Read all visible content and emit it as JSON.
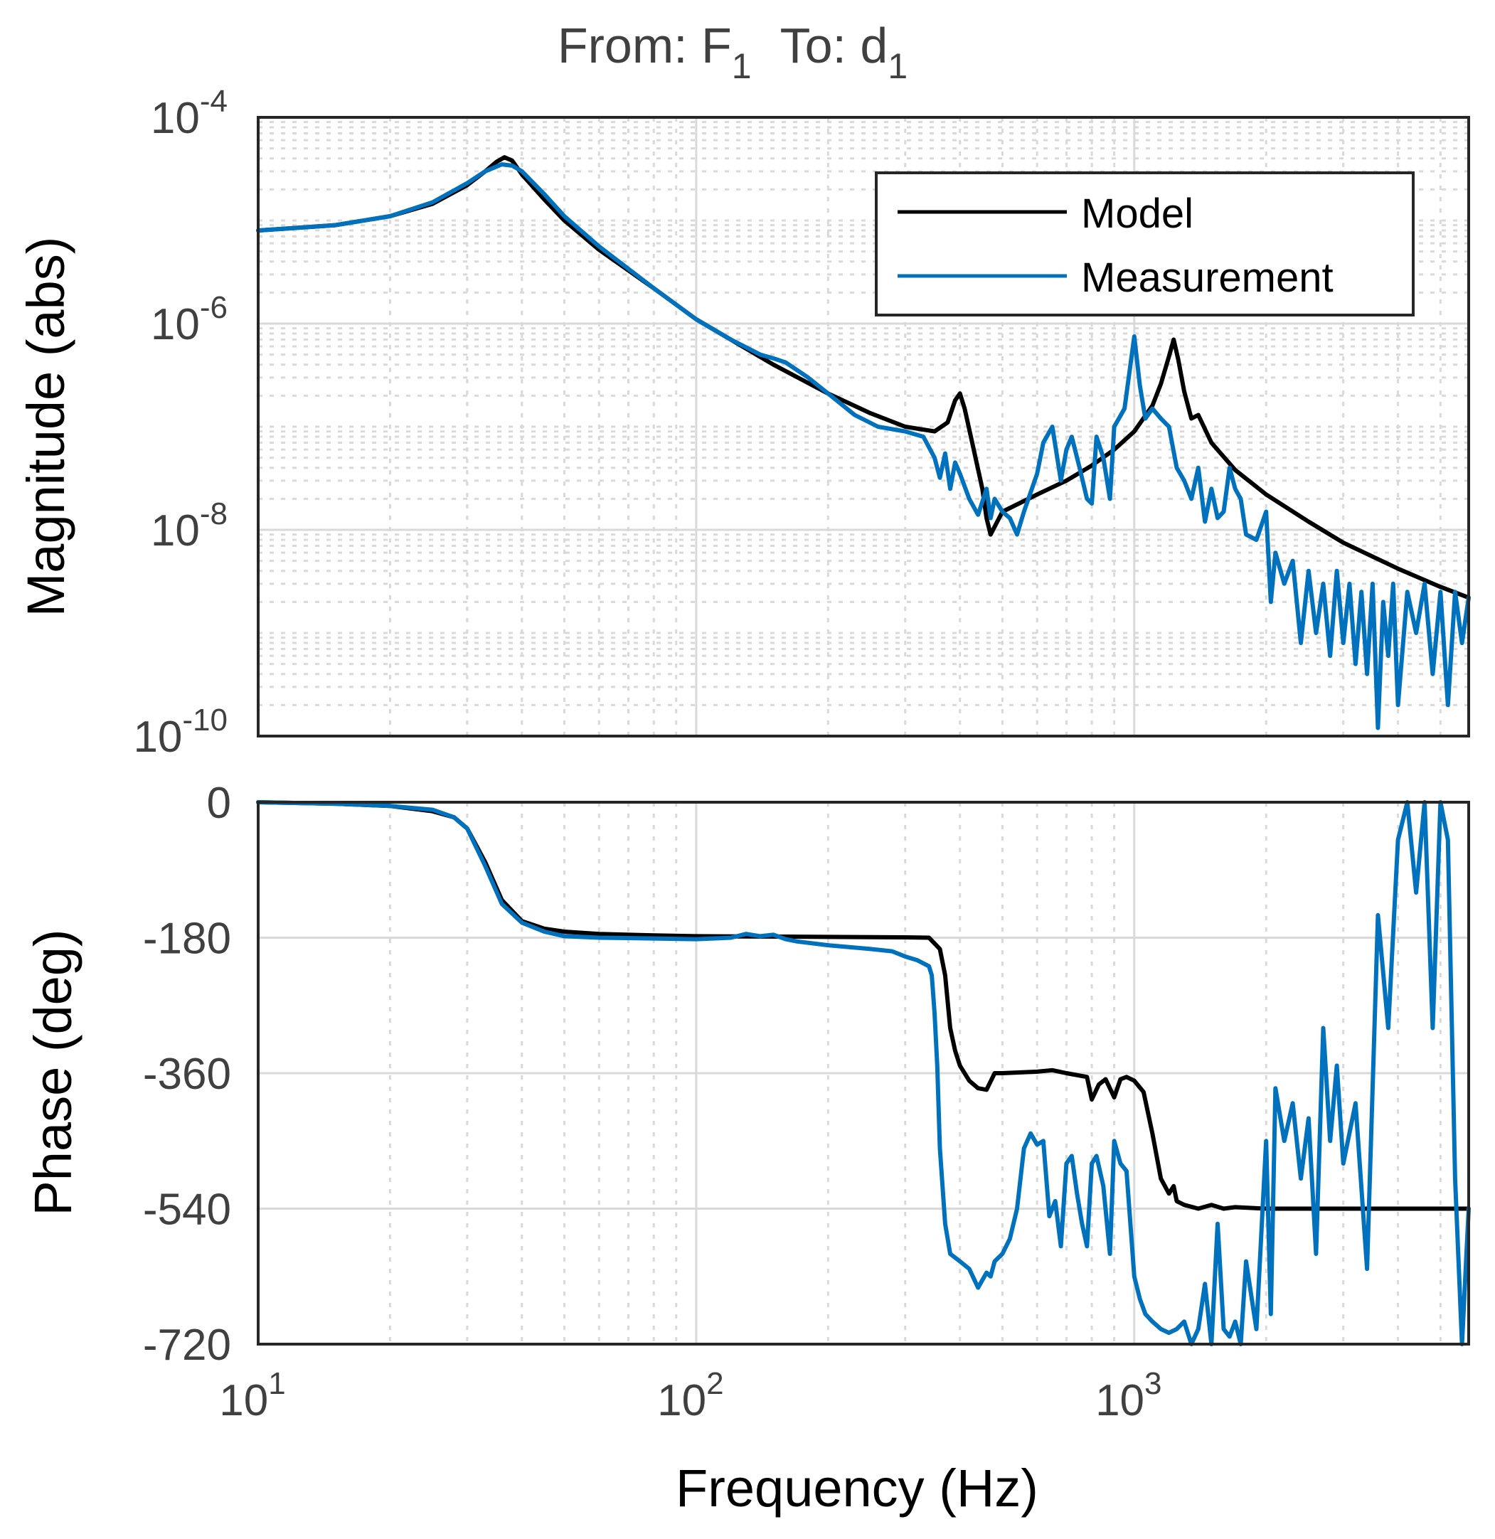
{
  "title": {
    "prefix_from": "From: F",
    "from_sub": "1",
    "prefix_to": "To: d",
    "to_sub": "1"
  },
  "colors": {
    "model": "#000000",
    "measurement": "#0072BD",
    "grid": "#d9d9d9",
    "text": "#404040"
  },
  "chart_data": [
    {
      "type": "line",
      "name": "magnitude",
      "title": "From: F1 To: d1",
      "xlabel": "Frequency (Hz)",
      "ylabel": "Magnitude (abs)",
      "xscale": "log",
      "yscale": "log",
      "xlim": [
        10,
        5800
      ],
      "ylim": [
        1e-10,
        0.0001
      ],
      "yticks": [
        {
          "base": "10",
          "exp": "-4"
        },
        {
          "base": "10",
          "exp": "-6"
        },
        {
          "base": "10",
          "exp": "-8"
        },
        {
          "base": "10",
          "exp": "-10"
        }
      ],
      "legend": {
        "position": "top-right",
        "entries": [
          "Model",
          "Measurement"
        ]
      },
      "series": [
        {
          "name": "Model",
          "x": [
            10,
            15,
            20,
            25,
            30,
            33,
            35,
            36.5,
            38,
            40,
            45,
            50,
            60,
            80,
            100,
            150,
            200,
            250,
            300,
            350,
            375,
            390,
            400,
            410,
            430,
            450,
            460,
            470,
            500,
            600,
            700,
            800,
            900,
            1000,
            1100,
            1150,
            1200,
            1230,
            1260,
            1300,
            1350,
            1400,
            1500,
            1700,
            2000,
            2500,
            3000,
            4000,
            5000,
            5800
          ],
          "y": [
            8e-06,
            9e-06,
            1.1e-05,
            1.45e-05,
            2.2e-05,
            3e-05,
            3.7e-05,
            4.1e-05,
            3.8e-05,
            2.8e-05,
            1.6e-05,
            1e-05,
            5.2e-06,
            2.2e-06,
            1.1e-06,
            4e-07,
            2.1e-07,
            1.35e-07,
            1e-07,
            9e-08,
            1.1e-07,
            1.8e-07,
            2.1e-07,
            1.5e-07,
            6e-08,
            2.5e-08,
            1.3e-08,
            9e-09,
            1.5e-08,
            2.2e-08,
            3e-08,
            4.2e-08,
            6e-08,
            9e-08,
            1.6e-07,
            2.6e-07,
            4.8e-07,
            7e-07,
            4.5e-07,
            2.2e-07,
            1.2e-07,
            1.3e-07,
            7e-08,
            3.8e-08,
            2.2e-08,
            1.2e-08,
            7.5e-09,
            4.2e-09,
            2.8e-09,
            2.2e-09
          ]
        },
        {
          "name": "Measurement",
          "x": [
            10,
            15,
            20,
            25,
            30,
            33,
            36,
            38,
            40,
            45,
            50,
            60,
            80,
            100,
            120,
            140,
            150,
            160,
            180,
            200,
            230,
            260,
            300,
            330,
            350,
            360,
            370,
            380,
            390,
            400,
            420,
            440,
            460,
            470,
            480,
            500,
            520,
            540,
            560,
            600,
            620,
            650,
            680,
            700,
            720,
            750,
            780,
            800,
            820,
            850,
            880,
            900,
            950,
            1000,
            1030,
            1060,
            1100,
            1150,
            1200,
            1250,
            1300,
            1350,
            1400,
            1450,
            1500,
            1550,
            1600,
            1650,
            1700,
            1750,
            1800,
            1900,
            2000,
            2050,
            2100,
            2200,
            2300,
            2400,
            2500,
            2600,
            2700,
            2800,
            2900,
            3000,
            3100,
            3200,
            3300,
            3400,
            3500,
            3600,
            3700,
            3800,
            3900,
            4000,
            4200,
            4400,
            4600,
            4800,
            5000,
            5200,
            5400,
            5600,
            5800
          ],
          "y": [
            8e-06,
            9e-06,
            1.1e-05,
            1.5e-05,
            2.3e-05,
            3e-05,
            3.5e-05,
            3.4e-05,
            3e-05,
            1.8e-05,
            1.1e-05,
            5.6e-06,
            2.2e-06,
            1.1e-06,
            7e-07,
            5e-07,
            4.6e-07,
            4.2e-07,
            3e-07,
            2.1e-07,
            1.3e-07,
            1e-07,
            9e-08,
            8e-08,
            5e-08,
            3.2e-08,
            5.5e-08,
            2.5e-08,
            4.5e-08,
            3.5e-08,
            2e-08,
            1.4e-08,
            2.5e-08,
            1.3e-08,
            2e-08,
            1.5e-08,
            1.3e-08,
            9e-09,
            1.5e-08,
            3.5e-08,
            7e-08,
            1e-07,
            3e-08,
            6e-08,
            8e-08,
            4e-08,
            2e-08,
            1.8e-08,
            8e-08,
            5e-08,
            2e-08,
            1e-07,
            1.5e-07,
            7.5e-07,
            2.5e-07,
            1.2e-07,
            1.5e-07,
            1.2e-07,
            1e-07,
            4e-08,
            3e-08,
            2e-08,
            4e-08,
            1.2e-08,
            2.5e-08,
            1.3e-08,
            1.5e-08,
            4e-08,
            2.5e-08,
            2e-08,
            9e-09,
            8e-09,
            1.5e-08,
            2e-09,
            6e-09,
            3e-09,
            5e-09,
            8e-10,
            4e-09,
            1e-09,
            3e-09,
            6e-10,
            4e-09,
            8e-10,
            3e-09,
            5e-10,
            2.5e-09,
            4e-10,
            3e-09,
            1.2e-10,
            2e-09,
            6e-10,
            3e-09,
            2e-10,
            2.5e-09,
            1e-09,
            3e-09,
            4e-10,
            2.5e-09,
            2e-10,
            2.5e-09,
            8e-10,
            2.2e-09
          ]
        }
      ]
    },
    {
      "type": "line",
      "name": "phase",
      "xlabel": "Frequency  (Hz)",
      "ylabel": "Phase (deg)",
      "xscale": "log",
      "xlim": [
        10,
        5800
      ],
      "ylim": [
        -720,
        0
      ],
      "yticks": [
        "0",
        "-180",
        "-360",
        "-540",
        "-720"
      ],
      "xticks": [
        {
          "base": "10",
          "exp": "1"
        },
        {
          "base": "10",
          "exp": "2"
        },
        {
          "base": "10",
          "exp": "3"
        }
      ],
      "series": [
        {
          "name": "Model",
          "x": [
            10,
            15,
            20,
            25,
            28,
            30,
            33,
            36,
            40,
            45,
            50,
            60,
            80,
            100,
            150,
            200,
            300,
            340,
            360,
            370,
            380,
            390,
            400,
            420,
            440,
            460,
            480,
            500,
            600,
            650,
            700,
            780,
            800,
            830,
            860,
            900,
            930,
            960,
            1000,
            1050,
            1100,
            1150,
            1200,
            1230,
            1250,
            1300,
            1400,
            1500,
            1600,
            1700,
            2000,
            3000,
            4000,
            5000,
            5800
          ],
          "y": [
            0,
            -2,
            -5,
            -12,
            -20,
            -35,
            -80,
            -130,
            -158,
            -168,
            -172,
            -175,
            -177,
            -178,
            -178.5,
            -179,
            -179.5,
            -180,
            -195,
            -230,
            -300,
            -330,
            -350,
            -370,
            -380,
            -382,
            -360,
            -360,
            -358,
            -356,
            -360,
            -365,
            -395,
            -375,
            -368,
            -392,
            -368,
            -365,
            -370,
            -385,
            -440,
            -500,
            -520,
            -510,
            -530,
            -535,
            -540,
            -535,
            -540,
            -538,
            -540,
            -540,
            -540,
            -540,
            -540
          ]
        },
        {
          "name": "Measurement",
          "x": [
            10,
            15,
            20,
            25,
            28,
            30,
            33,
            36,
            40,
            45,
            50,
            60,
            80,
            100,
            120,
            130,
            140,
            150,
            160,
            170,
            200,
            250,
            280,
            300,
            320,
            340,
            345,
            350,
            355,
            360,
            370,
            380,
            400,
            420,
            440,
            460,
            470,
            480,
            500,
            520,
            540,
            560,
            580,
            600,
            620,
            640,
            660,
            680,
            700,
            720,
            740,
            760,
            780,
            800,
            820,
            850,
            880,
            900,
            930,
            960,
            1000,
            1030,
            1060,
            1100,
            1150,
            1200,
            1250,
            1300,
            1350,
            1400,
            1450,
            1500,
            1550,
            1600,
            1650,
            1700,
            1750,
            1800,
            1900,
            2000,
            2050,
            2100,
            2200,
            2300,
            2400,
            2500,
            2600,
            2700,
            2800,
            2900,
            3000,
            3200,
            3400,
            3600,
            3800,
            4000,
            4200,
            4400,
            4600,
            4800,
            5000,
            5200,
            5400,
            5600,
            5800
          ],
          "y": [
            0,
            -2,
            -5,
            -10,
            -20,
            -35,
            -85,
            -135,
            -160,
            -172,
            -178,
            -180,
            -181,
            -182,
            -180,
            -175,
            -178,
            -176,
            -182,
            -185,
            -190,
            -195,
            -198,
            -205,
            -210,
            -218,
            -230,
            -280,
            -350,
            -460,
            -560,
            -600,
            -610,
            -620,
            -645,
            -625,
            -630,
            -610,
            -600,
            -580,
            -540,
            -460,
            -440,
            -455,
            -450,
            -550,
            -530,
            -590,
            -480,
            -470,
            -520,
            -560,
            -590,
            -480,
            -470,
            -510,
            -600,
            -450,
            -480,
            -490,
            -630,
            -660,
            -680,
            -690,
            -700,
            -705,
            -700,
            -690,
            -720,
            -700,
            -640,
            -720,
            -560,
            -700,
            -710,
            -690,
            -720,
            -610,
            -700,
            -450,
            -680,
            -380,
            -450,
            -400,
            -500,
            -420,
            -600,
            -300,
            -450,
            -350,
            -480,
            -400,
            -620,
            -150,
            -300,
            -50,
            0,
            -120,
            0,
            -300,
            0,
            -50,
            -500,
            -720,
            -540
          ]
        }
      ]
    }
  ]
}
